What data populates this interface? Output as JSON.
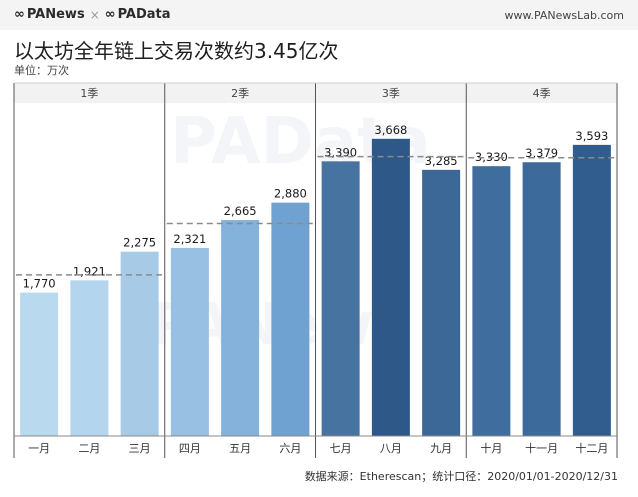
{
  "header": {
    "brand_left": "PANews",
    "brand_sep": "×",
    "brand_right": "PAData",
    "site": "www.PANewsLab.com"
  },
  "title": "以太坊全年链上交易次数约3.45亿次",
  "unit": "单位：万次",
  "source": "数据来源：Etherescan；统计口径：2020/01/01-2020/12/31",
  "watermark_text": "PAData",
  "watermark_text_2": "PANews",
  "chart_data": {
    "type": "bar",
    "categories": [
      "一月",
      "二月",
      "三月",
      "四月",
      "五月",
      "六月",
      "七月",
      "八月",
      "九月",
      "十月",
      "十一月",
      "十二月"
    ],
    "values": [
      1770,
      1921,
      2275,
      2321,
      2665,
      2880,
      3390,
      3668,
      3285,
      3330,
      3379,
      3593
    ],
    "value_labels": [
      "1,770",
      "1,921",
      "2,275",
      "2,321",
      "2,665",
      "2,880",
      "3,390",
      "3,668",
      "3,285",
      "3,330",
      "3,379",
      "3,593"
    ],
    "groups": [
      {
        "label": "1季",
        "start": 0,
        "end": 2
      },
      {
        "label": "2季",
        "start": 3,
        "end": 5
      },
      {
        "label": "3季",
        "start": 6,
        "end": 8
      },
      {
        "label": "4季",
        "start": 9,
        "end": 11
      }
    ],
    "quarter_averages": [
      1989,
      2622,
      3448,
      3434
    ],
    "ylim": [
      0,
      4200
    ],
    "colors": [
      "#b9d9ef",
      "#b4d5ee",
      "#a7cbe7",
      "#98c0e2",
      "#84b2da",
      "#6fa2d0",
      "#46739f",
      "#2e5887",
      "#3c6897",
      "#3f6e9e",
      "#3c6a9b",
      "#305d8d"
    ],
    "grid": false,
    "xlabel": "",
    "ylabel": ""
  }
}
